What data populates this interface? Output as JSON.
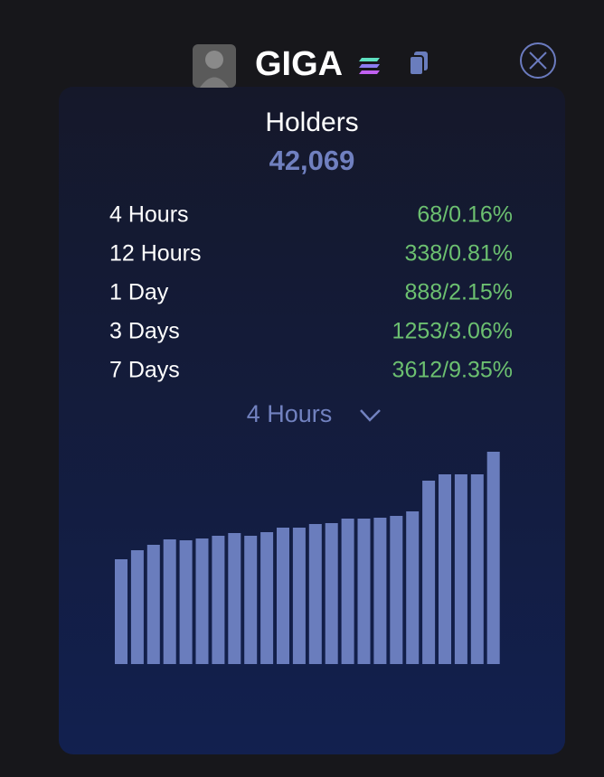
{
  "header": {
    "token": "GIGA"
  },
  "holders": {
    "label": "Holders",
    "count": "42,069"
  },
  "stats": [
    {
      "period": "4 Hours",
      "change": "68/0.16%"
    },
    {
      "period": "12 Hours",
      "change": "338/0.81%"
    },
    {
      "period": "1 Day",
      "change": "888/2.15%"
    },
    {
      "period": "3 Days",
      "change": "1253/3.06%"
    },
    {
      "period": "7 Days",
      "change": "3612/9.35%"
    }
  ],
  "dropdown": {
    "selected": "4 Hours"
  },
  "chart_data": {
    "type": "bar",
    "color": "#6a7dbd",
    "ylim": [
      0,
      235
    ],
    "values": [
      116,
      126,
      132,
      138,
      137,
      139,
      142,
      145,
      142,
      146,
      151,
      151,
      155,
      156,
      161,
      161,
      162,
      164,
      169,
      203,
      210,
      210,
      210,
      235
    ]
  }
}
